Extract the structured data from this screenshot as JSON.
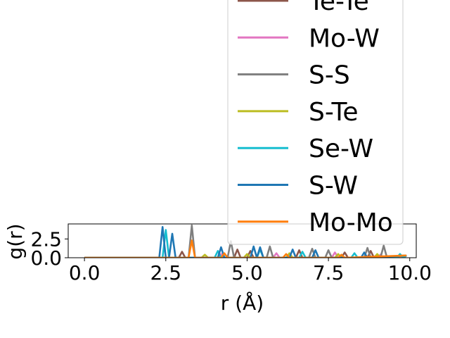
{
  "chart_data": {
    "type": "line",
    "title": "",
    "xlabel": "r (Å)",
    "ylabel": "g(r)",
    "xlim": [
      -0.5,
      10.2
    ],
    "ylim": [
      0,
      4.5
    ],
    "x_ticks": [
      "0.0",
      "2.5",
      "5.0",
      "7.5",
      "10.0"
    ],
    "y_ticks": [
      "0.0",
      "2.5"
    ],
    "legend_placement": "upper right, extends above axes",
    "series": [
      {
        "name": "Te-Te",
        "color": "#8c564b",
        "x": [
          0,
          2.9,
          3.0,
          3.1,
          4.6,
          4.7,
          4.8,
          5.0,
          5.1,
          5.2,
          6.5,
          6.6,
          6.7,
          7.9,
          8.0,
          8.1,
          8.7,
          8.8,
          8.9,
          9.9
        ],
        "y": [
          0,
          0,
          0.8,
          0,
          0,
          1.1,
          0,
          0,
          0.9,
          0,
          0,
          1.0,
          0,
          0,
          0.7,
          0,
          0,
          0.9,
          0,
          0.3
        ]
      },
      {
        "name": "Mo-W",
        "color": "#e377c2",
        "x": [
          0,
          4.1,
          4.2,
          4.3,
          5.8,
          5.9,
          6.0,
          7.6,
          7.7,
          7.8,
          9.0,
          9.1,
          9.2,
          9.9
        ],
        "y": [
          0,
          0,
          0.5,
          0,
          0,
          0.6,
          0,
          0,
          0.7,
          0,
          0,
          0.4,
          0,
          0.2
        ]
      },
      {
        "name": "S-S",
        "color": "#7f7f7f",
        "x": [
          0,
          3.2,
          3.3,
          3.4,
          4.4,
          4.5,
          4.6,
          5.6,
          5.7,
          5.8,
          6.9,
          7.0,
          7.1,
          7.4,
          7.5,
          7.6,
          8.6,
          8.7,
          8.8,
          9.1,
          9.2,
          9.3,
          9.9
        ],
        "y": [
          0,
          0,
          4.3,
          0,
          0,
          2.2,
          0,
          0,
          1.5,
          0,
          0,
          1.2,
          0,
          0,
          1.0,
          0,
          0,
          1.3,
          0,
          0,
          1.6,
          0,
          0.3
        ]
      },
      {
        "name": "S-Te",
        "color": "#bcbd22",
        "x": [
          0,
          3.6,
          3.7,
          3.8,
          4.9,
          5.0,
          5.1,
          6.2,
          6.3,
          6.4,
          7.7,
          7.8,
          7.9,
          8.9,
          9.0,
          9.1,
          9.9
        ],
        "y": [
          0,
          0,
          0.4,
          0,
          0,
          0.5,
          0,
          0,
          0.6,
          0,
          0,
          0.5,
          0,
          0,
          0.5,
          0,
          0.3
        ]
      },
      {
        "name": "Se-W",
        "color": "#17becf",
        "x": [
          0,
          2.4,
          2.5,
          2.6,
          4.0,
          4.1,
          4.2,
          5.3,
          5.4,
          5.5,
          6.6,
          6.7,
          6.8,
          8.2,
          8.3,
          8.4,
          9.6,
          9.7,
          9.8,
          9.9
        ],
        "y": [
          0,
          0,
          3.7,
          0,
          0,
          0.9,
          0,
          0,
          1.1,
          0,
          0,
          0.8,
          0,
          0,
          0.6,
          0,
          0,
          0.5,
          0,
          0.3
        ]
      },
      {
        "name": "S-W",
        "color": "#1f77b4",
        "x": [
          0,
          2.3,
          2.4,
          2.5,
          2.6,
          2.7,
          2.8,
          4.1,
          4.2,
          4.3,
          5.1,
          5.2,
          5.3,
          5.4,
          5.5,
          6.3,
          6.4,
          6.5,
          7.0,
          7.1,
          7.2,
          8.5,
          8.6,
          8.7,
          9.9
        ],
        "y": [
          0,
          0,
          4.1,
          0,
          0,
          3.2,
          0,
          0,
          1.4,
          0,
          0,
          1.5,
          0,
          1.4,
          0,
          0,
          1.1,
          0,
          0,
          1.0,
          0,
          0,
          0.7,
          0,
          0.3
        ]
      },
      {
        "name": "Mo-Mo",
        "color": "#ff7f0e",
        "x": [
          0,
          3.2,
          3.3,
          3.4,
          4.2,
          4.3,
          4.4,
          6.1,
          6.2,
          6.3,
          7.8,
          7.9,
          8.0,
          9.9
        ],
        "y": [
          0,
          0,
          2.3,
          0,
          0,
          0.6,
          0,
          0,
          0.5,
          0,
          0,
          0.4,
          0,
          0.3
        ]
      }
    ]
  }
}
